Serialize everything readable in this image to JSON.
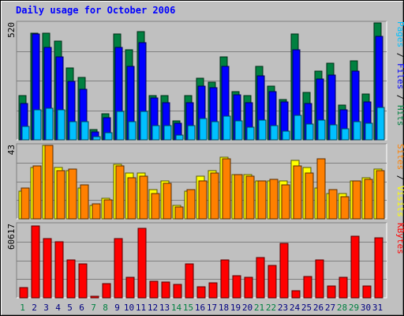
{
  "chart_data": {
    "type": "bar",
    "title": "Daily usage for October 2006",
    "categories": [
      "1",
      "2",
      "3",
      "4",
      "5",
      "6",
      "7",
      "8",
      "9",
      "10",
      "11",
      "12",
      "13",
      "14",
      "15",
      "16",
      "17",
      "18",
      "19",
      "20",
      "21",
      "22",
      "23",
      "24",
      "25",
      "26",
      "27",
      "28",
      "29",
      "30",
      "31"
    ],
    "weekend_days": [
      "1",
      "7",
      "8",
      "14",
      "15",
      "21",
      "22",
      "28",
      "29"
    ],
    "panels": [
      {
        "id": "top",
        "ymax_label": "520",
        "ylim": [
          0,
          520
        ],
        "right_label": [
          "Pages",
          "Files",
          "Hits"
        ],
        "series": [
          {
            "name": "Hits",
            "color": "#008040",
            "values": [
              195,
              475,
              475,
              438,
              320,
              278,
              47,
              116,
              472,
              402,
              480,
              195,
              195,
              85,
              195,
              275,
              255,
              370,
              215,
              195,
              325,
              240,
              178,
              470,
              210,
              305,
              340,
              155,
              350,
              205,
              520
            ]
          },
          {
            "name": "Files",
            "color": "#0000ff",
            "values": [
              160,
              470,
              410,
              368,
              260,
              225,
              36,
              100,
              410,
              328,
              432,
              185,
              165,
              75,
              165,
              240,
              233,
              325,
              200,
              165,
              285,
              213,
              170,
              400,
              160,
              270,
              288,
              135,
              305,
              168,
              460
            ]
          },
          {
            "name": "Pages",
            "color": "#00c0ff",
            "values": [
              60,
              135,
              140,
              135,
              82,
              82,
              14,
              30,
              128,
              82,
              125,
              62,
              62,
              20,
              62,
              95,
              82,
              105,
              85,
              55,
              88,
              62,
              40,
              110,
              70,
              88,
              65,
              48,
              80,
              75,
              145
            ]
          }
        ]
      },
      {
        "id": "middle",
        "ymax_label": "43",
        "ylim": [
          0,
          43
        ],
        "right_label": [
          "Sites",
          "Visits"
        ],
        "series": [
          {
            "name": "Visits",
            "color": "#ffff00",
            "values": [
              16,
              30,
              43,
              30,
              28,
              18,
              8,
              12,
              32,
              27,
              27,
              17,
              22,
              8,
              16,
              25,
              28,
              36,
              26,
              26,
              22,
              22,
              22,
              34,
              30,
              18,
              15,
              15,
              22,
              24,
              29
            ]
          },
          {
            "name": "Sites",
            "color": "#ff8000",
            "values": [
              18,
              31,
              43,
              28,
              29,
              20,
              9,
              11,
              31,
              24,
              25,
              15,
              21,
              7,
              17,
              22,
              27,
              35,
              26,
              25,
              22,
              23,
              20,
              31,
              27,
              35,
              17,
              13,
              22,
              23,
              28
            ]
          }
        ]
      },
      {
        "id": "bottom",
        "ymax_label": "60617",
        "ylim": [
          0,
          60617
        ],
        "right_label": [
          "KBytes"
        ],
        "series": [
          {
            "name": "KBytes",
            "color": "#ff0000",
            "values": [
              8700,
              59300,
              48800,
              46400,
              31300,
              28000,
              1500,
              11600,
              48800,
              16700,
              57400,
              13800,
              12800,
              11300,
              28000,
              8800,
              12700,
              31300,
              18500,
              16700,
              33000,
              26800,
              44800,
              5700,
              17600,
              31300,
              9700,
              16700,
              50800,
              9500,
              49700
            ]
          }
        ]
      }
    ]
  },
  "colors": {
    "background": "#c0c0c0",
    "frame": "#000000",
    "title": "#0000ff",
    "day_label": "#000080",
    "weekend_label": "#008040",
    "axis_label": "#000000",
    "label_separator": "#000000"
  }
}
